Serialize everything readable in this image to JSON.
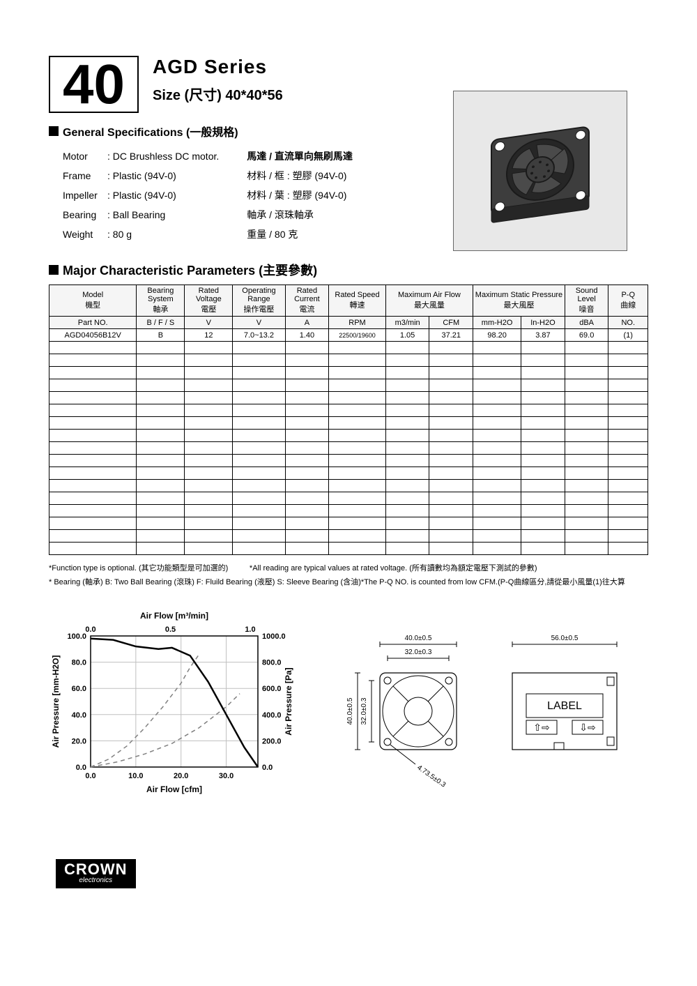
{
  "header": {
    "big_number": "40",
    "series_title": "AGD Series",
    "size_title": "Size (尺寸) 40*40*56"
  },
  "sections": {
    "general_spec_heading": "General Specifications  (一般規格)",
    "major_params_heading": "Major Characteristic Parameters (主要參數)"
  },
  "specs_left": {
    "row1_label": "Motor",
    "row1_value": ": DC Brushless DC motor.",
    "row2_label": "Frame",
    "row2_value": ": Plastic (94V-0)",
    "row3_label": "Impeller",
    "row3_value": ": Plastic (94V-0)",
    "row4_label": "Bearing",
    "row4_value": ": Ball Bearing",
    "row5_label": "Weight",
    "row5_value": ": 80  g"
  },
  "specs_right": {
    "row1": "馬達 / 直流單向無刷馬達",
    "row2": "材料 / 框 : 塑膠 (94V-0)",
    "row3": "材料 / 葉 : 塑膠 (94V-0)",
    "row4": "軸承 / 滾珠軸承",
    "row5": "重量 / 80  克"
  },
  "table": {
    "hdr": {
      "model_en": "Model",
      "model_cn": "機型",
      "bearing_en": "Bearing System",
      "bearing_cn": "軸承",
      "ratedv_en": "Rated Voltage",
      "ratedv_cn": "電壓",
      "oprange_en": "Operating Range",
      "oprange_cn": "操作電壓",
      "current_en": "Rated Current",
      "current_cn": "電流",
      "speed_en": "Rated Speed",
      "speed_cn": "轉速",
      "airflow_en": "Maximum Air Flow",
      "airflow_cn": "最大風量",
      "pressure_en": "Maximum Static Pressure",
      "pressure_cn": "最大風壓",
      "sound_en": "Sound Level",
      "sound_cn": "噪音",
      "pq_en": "P-Q",
      "pq_cn": "曲線"
    },
    "units": {
      "partno": "Part NO.",
      "bfs": "B / F / S",
      "v1": "V",
      "v2": "V",
      "a": "A",
      "rpm": "RPM",
      "m3min": "m3/min",
      "cfm": "CFM",
      "mmh2o": "mm-H2O",
      "inh2o": "In-H2O",
      "dba": "dBA",
      "no": "NO."
    },
    "row": {
      "partno": "AGD04056B12V",
      "bearing": "B",
      "rvolt": "12",
      "oprange": "7.0~13.2",
      "current": "1.40",
      "speed": "22500/19600",
      "m3min": "1.05",
      "cfm": "37.21",
      "mmh2o": "98.20",
      "inh2o": "3.87",
      "dba": "69.0",
      "pq": "(1)"
    },
    "empty_row_count": 17
  },
  "footnotes": {
    "f1": "*Function type is optional. (其它功能類型是可加選的)",
    "f2": "*All reading are typical values at rated voltage. (所有讀數均為額定電壓下測試的參數)",
    "f3": "* Bearing (軸承)  B: Two Ball Bearing (滾珠) F: Fluild Bearing (液壓)  S: Sleeve Bearing (含油)*The P-Q NO. is counted from low CFM.(P-Q曲線區分,請從最小風量(1)往大算"
  },
  "chart": {
    "type": "line",
    "title_top": "Air Flow [m³/min]",
    "title_bottom": "Air Flow [cfm]",
    "y_left_label": "Air Pressure [mm-H2O]",
    "y_right_label": "Air Pressure [Pa]",
    "x_top_ticks": [
      "0.0",
      "0.5",
      "1.0"
    ],
    "x_bottom_ticks": [
      "0.0",
      "10.0",
      "20.0",
      "30.0"
    ],
    "y_left_ticks": [
      "0.0",
      "20.0",
      "40.0",
      "60.0",
      "80.0",
      "100.0"
    ],
    "y_right_ticks": [
      "0.0",
      "200.0",
      "400.0",
      "600.0",
      "800.0",
      "1000.0"
    ],
    "xlim_bottom": [
      0,
      37
    ],
    "ylim_left": [
      0,
      100
    ],
    "grid_color": "#bfbfbf",
    "axis_color": "#000000",
    "background_color": "#ffffff",
    "font_size_ticks": 11,
    "font_size_labels": 12,
    "series_solid": {
      "color": "#000000",
      "width": 2.5,
      "dash": "none",
      "points_cfm_mmH2O": [
        [
          0,
          98
        ],
        [
          5,
          97
        ],
        [
          10,
          92
        ],
        [
          15,
          90
        ],
        [
          18,
          91
        ],
        [
          22,
          85
        ],
        [
          26,
          65
        ],
        [
          30,
          40
        ],
        [
          34,
          15
        ],
        [
          37,
          0
        ]
      ]
    },
    "series_dash1": {
      "color": "#808080",
      "width": 1.5,
      "dash": "6,5",
      "points_cfm_mmH2O": [
        [
          0,
          0
        ],
        [
          4,
          6
        ],
        [
          8,
          16
        ],
        [
          12,
          30
        ],
        [
          16,
          46
        ],
        [
          20,
          64
        ],
        [
          22,
          76
        ],
        [
          24,
          86
        ]
      ]
    },
    "series_dash2": {
      "color": "#808080",
      "width": 1.5,
      "dash": "6,5",
      "points_cfm_mmH2O": [
        [
          0,
          0
        ],
        [
          6,
          4
        ],
        [
          12,
          10
        ],
        [
          18,
          18
        ],
        [
          24,
          30
        ],
        [
          30,
          46
        ],
        [
          33,
          56
        ]
      ]
    }
  },
  "dimensions": {
    "outer_w": "40.0±0.5",
    "hole_pitch": "32.0±0.3",
    "outer_h": "40.0±0.5",
    "hole_pitch_v": "32.0±0.3",
    "hole_dia": "4.73.5±0.3",
    "depth": "56.0±0.5",
    "label_text": "LABEL",
    "line_color": "#000000",
    "fill_color": "#ffffff",
    "font_size": 10
  },
  "logo": {
    "main": "CROWN",
    "sub": "electronics"
  },
  "colors": {
    "page_bg": "#ffffff",
    "text": "#000000",
    "table_border": "#000000",
    "table_header_bg": "#f5f5f5",
    "image_bg": "#e8e8e8",
    "fan_body": "#3d3d3d",
    "fan_dark": "#262626",
    "fan_outline": "#1a1a1a"
  }
}
